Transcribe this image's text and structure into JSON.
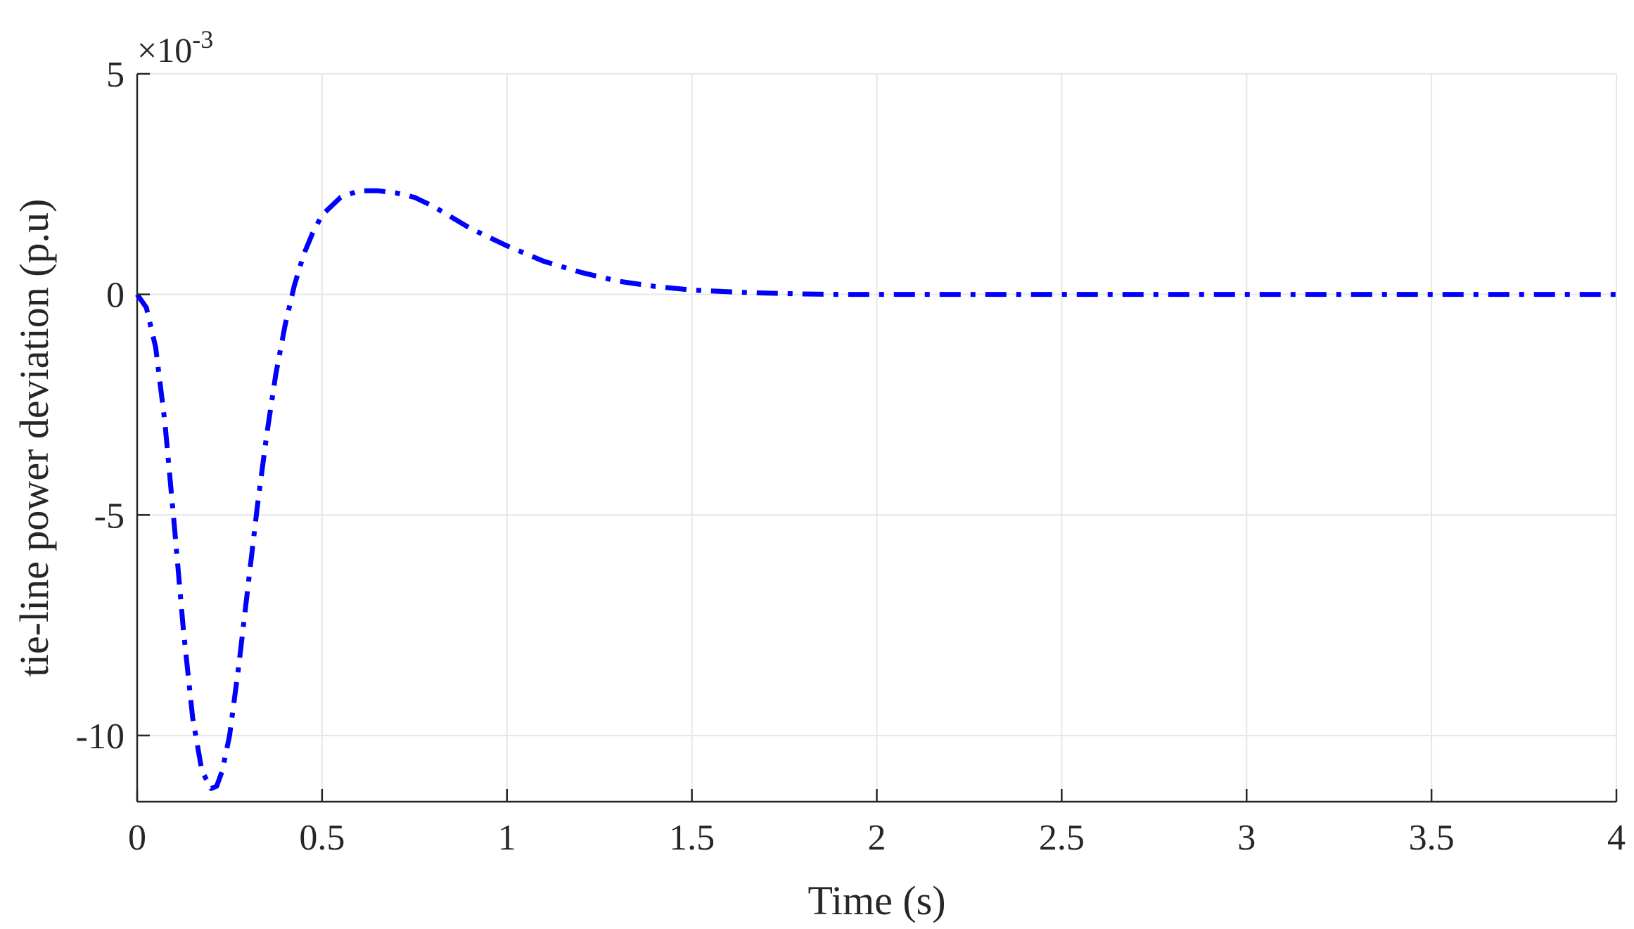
{
  "chart_data": {
    "type": "line",
    "title": "",
    "xlabel": "Time (s)",
    "ylabel": "tie-line power deviation (p.u)",
    "y_exponent_base": "×10",
    "y_exponent": "-3",
    "xlim": [
      0,
      4
    ],
    "ylim": [
      -11.5,
      5
    ],
    "y_scale_factor": 0.001,
    "xticks": [
      0,
      0.5,
      1,
      1.5,
      2,
      2.5,
      3,
      3.5,
      4
    ],
    "xtick_labels": [
      "0",
      "0.5",
      "1",
      "1.5",
      "2",
      "2.5",
      "3",
      "3.5",
      "4"
    ],
    "yticks": [
      -10,
      -5,
      0,
      5
    ],
    "ytick_labels": [
      "-10",
      "-5",
      "0",
      "5"
    ],
    "grid": true,
    "legend": "none",
    "series": [
      {
        "color": "#0000ff",
        "line_style": "dash-dot",
        "x": [
          0,
          0.025,
          0.05,
          0.075,
          0.1,
          0.125,
          0.15,
          0.175,
          0.2,
          0.215,
          0.23,
          0.25,
          0.275,
          0.3,
          0.325,
          0.35,
          0.375,
          0.4,
          0.425,
          0.45,
          0.475,
          0.5,
          0.55,
          0.6,
          0.65,
          0.7,
          0.75,
          0.8,
          0.9,
          1.0,
          1.1,
          1.2,
          1.3,
          1.4,
          1.5,
          1.6,
          1.7,
          1.8,
          1.9,
          2.0,
          2.2,
          2.5,
          3.0,
          3.5,
          4.0
        ],
        "y": [
          0,
          -0.3,
          -1.2,
          -2.9,
          -5.2,
          -7.6,
          -9.6,
          -10.8,
          -11.2,
          -11.15,
          -10.8,
          -10.0,
          -8.4,
          -6.6,
          -4.8,
          -3.2,
          -1.8,
          -0.7,
          0.2,
          0.9,
          1.4,
          1.8,
          2.2,
          2.35,
          2.35,
          2.3,
          2.2,
          2.0,
          1.5,
          1.1,
          0.75,
          0.5,
          0.3,
          0.18,
          0.1,
          0.06,
          0.03,
          0.01,
          0.0,
          0.0,
          0.0,
          0.0,
          0.0,
          0.0,
          0.0
        ]
      }
    ]
  }
}
